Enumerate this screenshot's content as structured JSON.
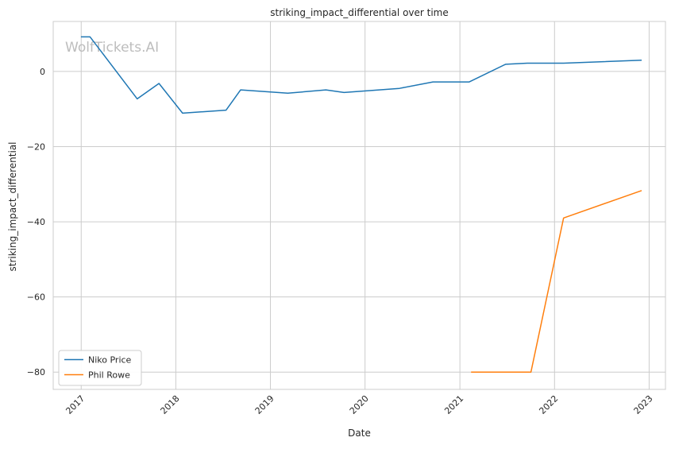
{
  "chart_data": {
    "type": "line",
    "title": "striking_impact_differential over time",
    "xlabel": "Date",
    "ylabel": "striking_impact_differential",
    "watermark": "WolfTickets.AI",
    "x_ticks": [
      "2017",
      "2018",
      "2019",
      "2020",
      "2021",
      "2022",
      "2023"
    ],
    "y_ticks": [
      0,
      -20,
      -40,
      -60,
      -80
    ],
    "xlim": [
      "2016-09-15",
      "2023-03-05"
    ],
    "ylim": [
      -84.6,
      13.3
    ],
    "grid": true,
    "legend_position": "lower-left",
    "series": [
      {
        "name": "Niko Price",
        "color": "#1f77b4",
        "points": [
          [
            "2016-12-31",
            9.2
          ],
          [
            "2017-02-04",
            9.2
          ],
          [
            "2017-08-05",
            -7.3
          ],
          [
            "2017-10-28",
            -3.2
          ],
          [
            "2018-01-27",
            -11.1
          ],
          [
            "2018-07-14",
            -10.3
          ],
          [
            "2018-09-08",
            -4.9
          ],
          [
            "2019-03-09",
            -5.8
          ],
          [
            "2019-08-03",
            -4.9
          ],
          [
            "2019-10-12",
            -5.6
          ],
          [
            "2020-05-13",
            -4.5
          ],
          [
            "2020-09-19",
            -2.8
          ],
          [
            "2021-02-06",
            -2.8
          ],
          [
            "2021-06-26",
            1.9
          ],
          [
            "2021-09-18",
            2.2
          ],
          [
            "2022-02-05",
            2.2
          ],
          [
            "2022-12-03",
            3.0
          ]
        ]
      },
      {
        "name": "Phil Rowe",
        "color": "#ff7f0e",
        "points": [
          [
            "2021-02-13",
            -80.0
          ],
          [
            "2021-10-02",
            -80.0
          ],
          [
            "2022-02-05",
            -39.0
          ],
          [
            "2022-12-03",
            -31.7
          ]
        ]
      }
    ]
  }
}
